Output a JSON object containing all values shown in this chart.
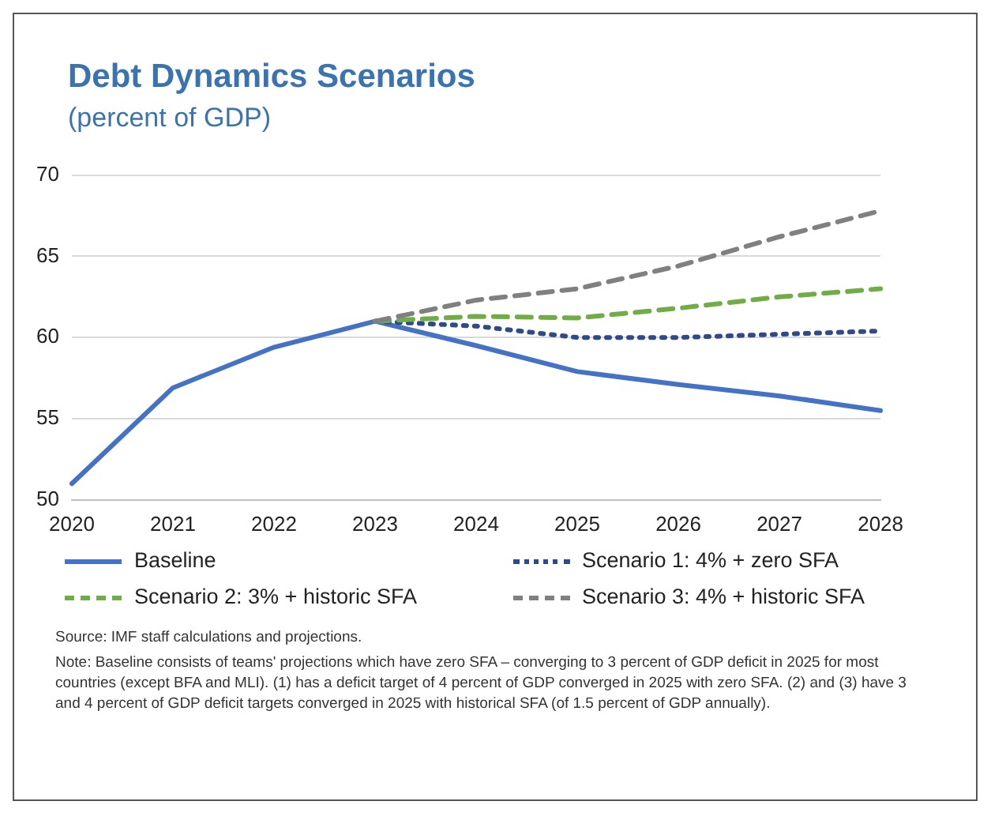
{
  "chart_data": {
    "type": "line",
    "title": "Debt Dynamics Scenarios",
    "subtitle": "(percent of GDP)",
    "categories": [
      "2020",
      "2021",
      "2022",
      "2023",
      "2024",
      "2025",
      "2026",
      "2027",
      "2028"
    ],
    "series": [
      {
        "name": "Scenario 3: 4% + historic SFA",
        "color": "#808080",
        "line_style": "dashed",
        "values": [
          null,
          null,
          null,
          61.0,
          62.3,
          63.0,
          64.4,
          66.2,
          67.8
        ]
      },
      {
        "name": "Scenario 2: 3% + historic SFA",
        "color": "#70ad47",
        "line_style": "dashed",
        "values": [
          null,
          null,
          null,
          61.0,
          61.3,
          61.2,
          61.8,
          62.5,
          63.0
        ]
      },
      {
        "name": "Scenario 1: 4% + zero SFA",
        "color": "#2f4a8a",
        "line_style": "dotted",
        "values": [
          null,
          null,
          null,
          61.0,
          60.7,
          60.0,
          60.0,
          60.2,
          60.4
        ]
      },
      {
        "name": "Baseline",
        "color": "#4472c4",
        "line_style": "solid",
        "values": [
          51.0,
          56.9,
          59.4,
          61.0,
          59.5,
          57.9,
          57.1,
          56.4,
          55.5
        ]
      }
    ],
    "ylim": [
      50,
      70
    ],
    "yticks": [
      50,
      55,
      60,
      65,
      70
    ],
    "grid": "y",
    "legend": "bottom",
    "marker": "none",
    "annotations": [
      "Source: IMF staff calculations and projections.",
      "Note: Baseline consists of teams' projections which have zero SFA  – converging to 3 percent of GDP deficit in 2025 for most countries (except  BFA and MLI). (1) has a deficit target of 4 percent of GDP converged in 2025 with zero SFA. (2) and (3) have 3 and 4 percent of GDP deficit targets converged in 2025 with historical SFA (of 1.5 percent of GDP annually)."
    ]
  }
}
